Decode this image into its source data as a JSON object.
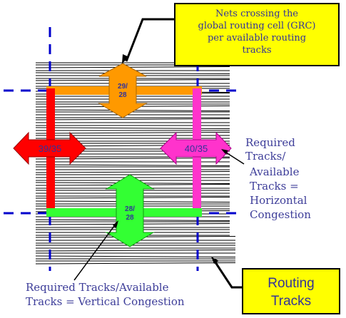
{
  "callouts": {
    "top_line1": "Nets crossing the",
    "top_line2": "global routing cell (GRC)",
    "top_line3": "per available routing",
    "top_line4": "tracks",
    "routing_line1": "Routing",
    "routing_line2": "Tracks"
  },
  "arrows": {
    "top_line1": "29/",
    "top_line2": "28",
    "left": "39/35",
    "right": "40/35",
    "bottom_line1": "28/",
    "bottom_line2": "28"
  },
  "labels": {
    "horizontal": [
      "Required",
      "Tracks/",
      "Available",
      "Tracks =",
      "Horizontal",
      "Congestion"
    ],
    "vertical_line1": "Required Tracks/Available",
    "vertical_line2": "Tracks = Vertical Congestion"
  },
  "colors": {
    "callout_fill": "#ffff00",
    "text_blue": "#3d3d99",
    "grid_blue": "#0000cc",
    "orange": "#ff9900",
    "red": "#ff0000",
    "magenta": "#ff33cc",
    "green": "#33ff33"
  }
}
